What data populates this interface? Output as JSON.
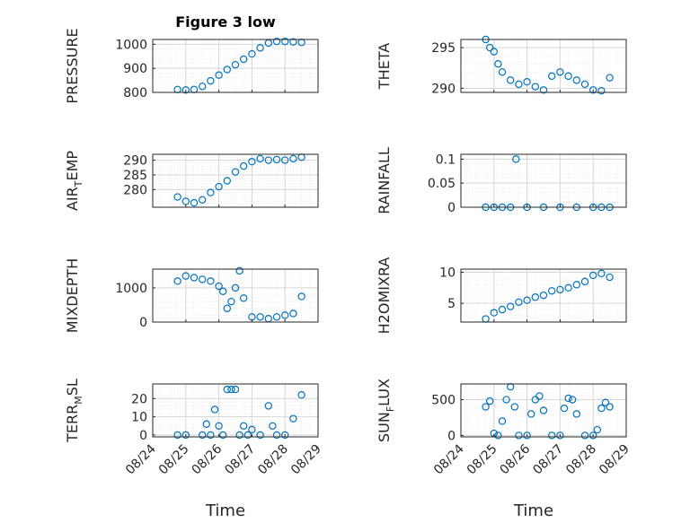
{
  "figure": {
    "title": "Figure 3 low",
    "xlabel": "Time"
  },
  "colors": {
    "marker": "#0072BD",
    "axis": "#262626",
    "grid": "#d6d6d6",
    "minor_grid": "#e6e6e6"
  },
  "x_ticks": [
    "08/24",
    "08/25",
    "08/26",
    "08/27",
    "08/28",
    "08/29"
  ],
  "chart_data": [
    {
      "type": "scatter",
      "title": "Figure 3 low",
      "ylabel": "PRESSURE",
      "xlim": [
        "08/24",
        "08/29"
      ],
      "ylim": [
        800,
        1020
      ],
      "yticks": [
        800,
        900,
        1000
      ],
      "grid": true,
      "x": [
        "08/24 18:00",
        "08/25 00:00",
        "08/25 06:00",
        "08/25 12:00",
        "08/25 18:00",
        "08/26 00:00",
        "08/26 06:00",
        "08/26 12:00",
        "08/26 18:00",
        "08/27 00:00",
        "08/27 06:00",
        "08/27 12:00",
        "08/27 18:00",
        "08/28 00:00",
        "08/28 06:00",
        "08/28 12:00"
      ],
      "y": [
        812,
        810,
        812,
        825,
        848,
        872,
        895,
        915,
        938,
        960,
        985,
        1005,
        1012,
        1012,
        1010,
        1008
      ]
    },
    {
      "type": "scatter",
      "ylabel": "THETA",
      "xlim": [
        "08/24",
        "08/29"
      ],
      "ylim": [
        289.5,
        296
      ],
      "yticks": [
        290,
        295
      ],
      "grid": true,
      "x": [
        "08/24 18:00",
        "08/24 21:00",
        "08/25 00:00",
        "08/25 03:00",
        "08/25 06:00",
        "08/25 12:00",
        "08/25 18:00",
        "08/26 00:00",
        "08/26 06:00",
        "08/26 12:00",
        "08/26 18:00",
        "08/27 00:00",
        "08/27 06:00",
        "08/27 12:00",
        "08/27 18:00",
        "08/28 00:00",
        "08/28 06:00",
        "08/28 12:00"
      ],
      "y": [
        296,
        295,
        294.5,
        293,
        292,
        291,
        290.5,
        290.8,
        290.2,
        289.8,
        291.5,
        292,
        291.5,
        291,
        290.5,
        289.8,
        289.7,
        291.3
      ]
    },
    {
      "type": "scatter",
      "ylabel": "AIR_TEMP",
      "xlim": [
        "08/24",
        "08/29"
      ],
      "ylim": [
        274,
        292
      ],
      "yticks": [
        280,
        285,
        290
      ],
      "grid": true,
      "x": [
        "08/24 18:00",
        "08/25 00:00",
        "08/25 06:00",
        "08/25 12:00",
        "08/25 18:00",
        "08/26 00:00",
        "08/26 06:00",
        "08/26 12:00",
        "08/26 18:00",
        "08/27 00:00",
        "08/27 06:00",
        "08/27 12:00",
        "08/27 18:00",
        "08/28 00:00",
        "08/28 06:00",
        "08/28 12:00"
      ],
      "y": [
        277.5,
        276,
        275.5,
        276.5,
        279,
        281,
        283,
        286,
        288,
        289.5,
        290.5,
        290,
        290.2,
        290,
        290.5,
        291
      ]
    },
    {
      "type": "scatter",
      "ylabel": "RAINFALL",
      "xlim": [
        "08/24",
        "08/29"
      ],
      "ylim": [
        0,
        0.11
      ],
      "yticks": [
        0,
        0.05,
        0.1
      ],
      "grid": true,
      "x": [
        "08/24 18:00",
        "08/25 00:00",
        "08/25 06:00",
        "08/25 12:00",
        "08/25 16:00",
        "08/26 00:00",
        "08/26 12:00",
        "08/27 00:00",
        "08/27 12:00",
        "08/28 00:00",
        "08/28 06:00",
        "08/28 12:00"
      ],
      "y": [
        0,
        0,
        0,
        0,
        0.1,
        0,
        0,
        0,
        0,
        0,
        0,
        0
      ]
    },
    {
      "type": "scatter",
      "ylabel": "MIXDEPTH",
      "xlim": [
        "08/24",
        "08/29"
      ],
      "ylim": [
        0,
        1550
      ],
      "yticks": [
        0,
        1000
      ],
      "grid": true,
      "x": [
        "08/24 18:00",
        "08/25 00:00",
        "08/25 06:00",
        "08/25 12:00",
        "08/25 18:00",
        "08/26 00:00",
        "08/26 03:00",
        "08/26 06:00",
        "08/26 09:00",
        "08/26 12:00",
        "08/26 15:00",
        "08/26 18:00",
        "08/27 00:00",
        "08/27 06:00",
        "08/27 12:00",
        "08/27 18:00",
        "08/28 00:00",
        "08/28 06:00",
        "08/28 12:00"
      ],
      "y": [
        1200,
        1350,
        1300,
        1250,
        1200,
        1050,
        900,
        400,
        600,
        1000,
        1500,
        700,
        150,
        150,
        100,
        150,
        200,
        250,
        750
      ]
    },
    {
      "type": "scatter",
      "ylabel": "H2OMIXRA",
      "xlim": [
        "08/24",
        "08/29"
      ],
      "ylim": [
        2,
        10.5
      ],
      "yticks": [
        5,
        10
      ],
      "grid": true,
      "x": [
        "08/24 18:00",
        "08/25 00:00",
        "08/25 06:00",
        "08/25 12:00",
        "08/25 18:00",
        "08/26 00:00",
        "08/26 06:00",
        "08/26 12:00",
        "08/26 18:00",
        "08/27 00:00",
        "08/27 06:00",
        "08/27 12:00",
        "08/27 18:00",
        "08/28 00:00",
        "08/28 06:00",
        "08/28 12:00"
      ],
      "y": [
        2.5,
        3.5,
        4,
        4.5,
        5.2,
        5.5,
        6,
        6.3,
        7,
        7.2,
        7.5,
        8,
        8.5,
        9.5,
        9.8,
        9.2
      ]
    },
    {
      "type": "scatter",
      "ylabel": "TERR_MSL",
      "xlim": [
        "08/24",
        "08/29"
      ],
      "ylim": [
        -1,
        28
      ],
      "yticks": [
        0,
        10,
        20
      ],
      "grid": true,
      "x": [
        "08/24 18:00",
        "08/25 00:00",
        "08/25 12:00",
        "08/25 15:00",
        "08/25 18:00",
        "08/25 21:00",
        "08/26 00:00",
        "08/26 03:00",
        "08/26 06:00",
        "08/26 09:00",
        "08/26 12:00",
        "08/26 15:00",
        "08/26 18:00",
        "08/26 21:00",
        "08/27 00:00",
        "08/27 06:00",
        "08/27 12:00",
        "08/27 15:00",
        "08/27 18:00",
        "08/28 00:00",
        "08/28 06:00",
        "08/28 12:00"
      ],
      "y": [
        0,
        0,
        0,
        6,
        0,
        14,
        5,
        0,
        25,
        25,
        25,
        0,
        5,
        0,
        3,
        0,
        16,
        5,
        0,
        0,
        9,
        22
      ]
    },
    {
      "type": "scatter",
      "ylabel": "SUN_FLUX",
      "xlim": [
        "08/24",
        "08/29"
      ],
      "ylim": [
        -20,
        720
      ],
      "yticks": [
        0,
        500
      ],
      "grid": true,
      "x": [
        "08/24 18:00",
        "08/24 21:00",
        "08/25 00:00",
        "08/25 03:00",
        "08/25 06:00",
        "08/25 09:00",
        "08/25 12:00",
        "08/25 15:00",
        "08/25 18:00",
        "08/26 00:00",
        "08/26 03:00",
        "08/26 06:00",
        "08/26 09:00",
        "08/26 12:00",
        "08/26 18:00",
        "08/27 00:00",
        "08/27 03:00",
        "08/27 06:00",
        "08/27 09:00",
        "08/27 12:00",
        "08/27 18:00",
        "08/28 00:00",
        "08/28 03:00",
        "08/28 06:00",
        "08/28 09:00",
        "08/28 12:00"
      ],
      "y": [
        400,
        480,
        30,
        0,
        200,
        500,
        680,
        400,
        0,
        0,
        300,
        500,
        550,
        350,
        0,
        0,
        380,
        520,
        500,
        300,
        0,
        0,
        80,
        380,
        460,
        400
      ]
    }
  ]
}
